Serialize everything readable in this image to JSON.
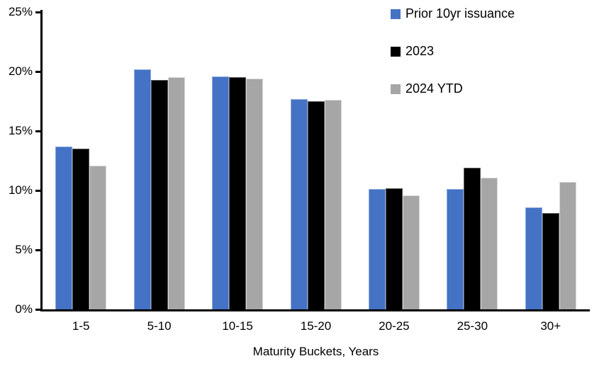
{
  "chart_data": {
    "type": "bar",
    "title": "",
    "categories": [
      "1-5",
      "5-10",
      "10-15",
      "15-20",
      "20-25",
      "25-30",
      "30+"
    ],
    "series": [
      {
        "name": "Prior 10yr issuance",
        "color": "#4472C4",
        "border_color": "#8ea9dc",
        "values": [
          13.7,
          20.2,
          19.6,
          17.7,
          10.1,
          10.1,
          8.6
        ]
      },
      {
        "name": "2023",
        "color": "#000000",
        "border_color": "#595959",
        "values": [
          13.5,
          19.3,
          19.5,
          17.5,
          10.2,
          11.9,
          8.1
        ]
      },
      {
        "name": "2024 YTD",
        "color": "#A6A6A6",
        "border_color": "#d9d9d9",
        "values": [
          12.1,
          19.5,
          19.4,
          17.6,
          9.6,
          11.1,
          10.7
        ]
      }
    ],
    "xlabel": "Maturity Buckets, Years",
    "ylabel": "",
    "ylim": [
      0,
      25
    ],
    "yticks": [
      {
        "value": 0,
        "label": "0%"
      },
      {
        "value": 5,
        "label": "5%"
      },
      {
        "value": 10,
        "label": "10%"
      },
      {
        "value": 15,
        "label": "15%"
      },
      {
        "value": 20,
        "label": "20%"
      },
      {
        "value": 25,
        "label": "25%"
      }
    ],
    "grid": false,
    "legend_position": "top-right"
  },
  "colors": {
    "background": "#ffffff",
    "axis": "#000000",
    "text": "#000000"
  }
}
